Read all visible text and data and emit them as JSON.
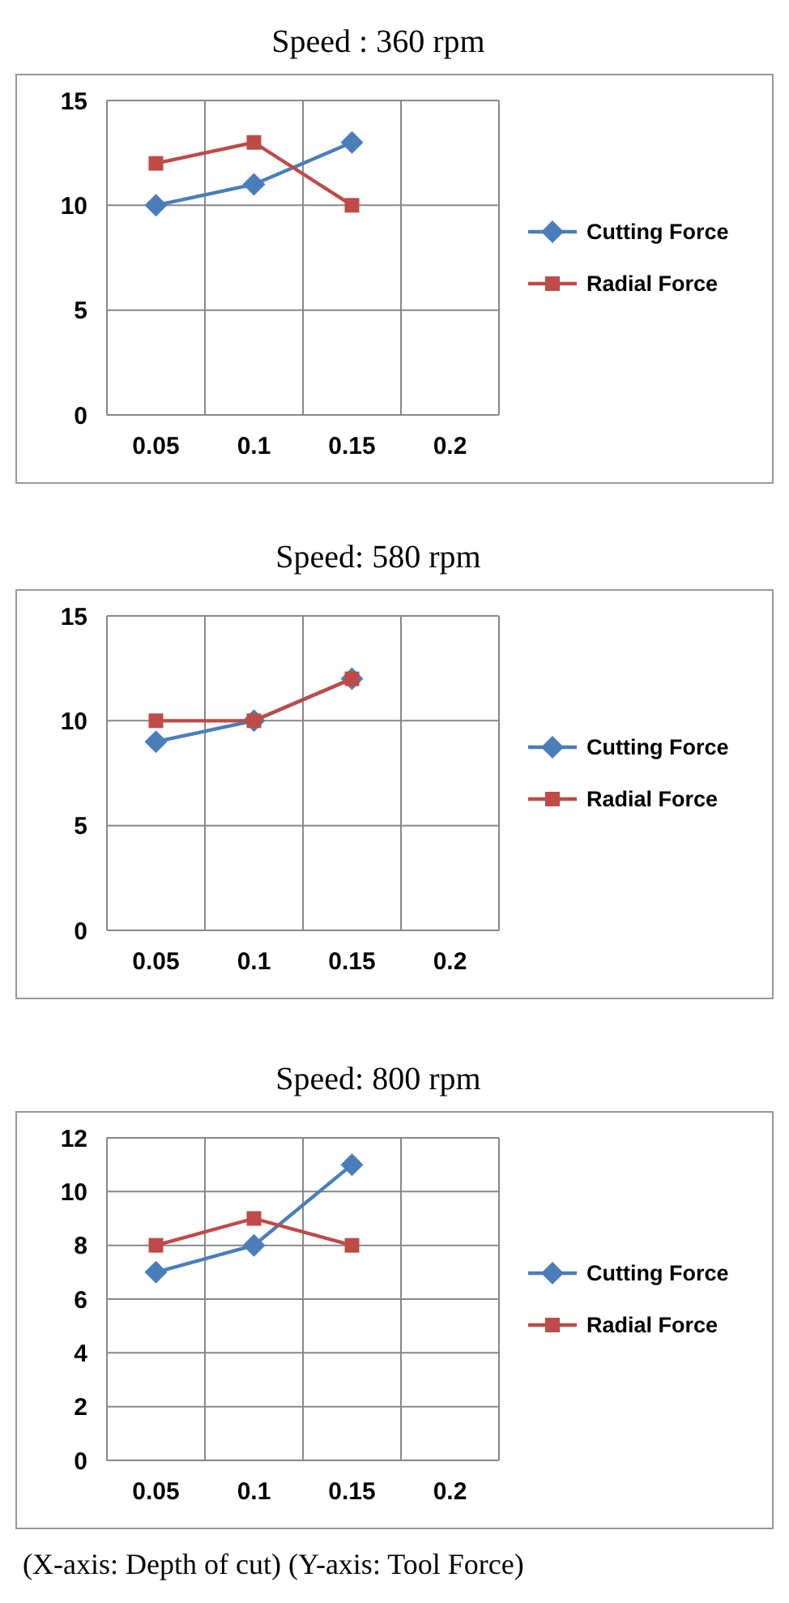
{
  "chart_data": [
    {
      "type": "line",
      "title": "Speed : 360 rpm",
      "categories": [
        "0.05",
        "0.1",
        "0.15",
        "0.2"
      ],
      "ylim": [
        0,
        15
      ],
      "yticks": [
        0,
        5,
        10,
        15
      ],
      "grid": true,
      "legend": "right",
      "series": [
        {
          "name": "Cutting Force",
          "color": "#4a7ebb",
          "marker": "diamond",
          "values": [
            10,
            11,
            13,
            null
          ]
        },
        {
          "name": "Radial Force",
          "color": "#be4b48",
          "marker": "square",
          "values": [
            12,
            13,
            10,
            null
          ]
        }
      ]
    },
    {
      "type": "line",
      "title": "Speed: 580 rpm",
      "categories": [
        "0.05",
        "0.1",
        "0.15",
        "0.2"
      ],
      "ylim": [
        0,
        15
      ],
      "yticks": [
        0,
        5,
        10,
        15
      ],
      "grid": true,
      "legend": "right",
      "series": [
        {
          "name": "Cutting Force",
          "color": "#4a7ebb",
          "marker": "diamond",
          "values": [
            9,
            10,
            12,
            null
          ]
        },
        {
          "name": "Radial Force",
          "color": "#be4b48",
          "marker": "square",
          "values": [
            10,
            10,
            12,
            null
          ]
        }
      ]
    },
    {
      "type": "line",
      "title": "Speed: 800 rpm",
      "categories": [
        "0.05",
        "0.1",
        "0.15",
        "0.2"
      ],
      "ylim": [
        0,
        12
      ],
      "yticks": [
        0,
        2,
        4,
        6,
        8,
        10,
        12
      ],
      "grid": true,
      "legend": "right",
      "annotations": [
        "(X-axis: Depth of cut) (Y-axis: Tool Force)"
      ],
      "series": [
        {
          "name": "Cutting Force",
          "color": "#4a7ebb",
          "marker": "diamond",
          "values": [
            7,
            8,
            11,
            null
          ]
        },
        {
          "name": "Radial Force",
          "color": "#be4b48",
          "marker": "square",
          "values": [
            8,
            9,
            8,
            null
          ]
        }
      ]
    }
  ]
}
